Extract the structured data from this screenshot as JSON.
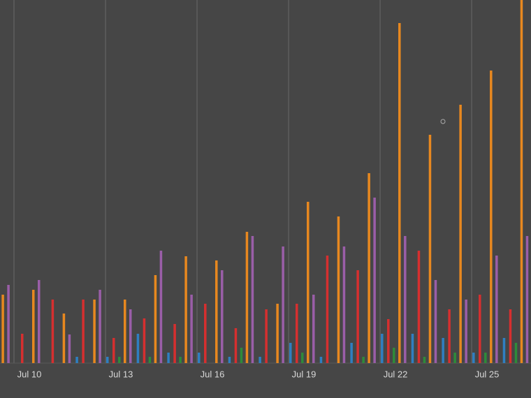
{
  "chart_data": {
    "type": "bar",
    "categories": [
      null,
      "Jul 10",
      null,
      null,
      "Jul 13",
      null,
      null,
      "Jul 16",
      null,
      null,
      "Jul 19",
      null,
      null,
      "Jul 22",
      null,
      null,
      "Jul 25",
      null
    ],
    "series": [
      {
        "color": "#2f7fc1",
        "values": [
          0,
          0,
          0,
          9,
          9,
          42,
          15,
          15,
          9,
          9,
          29,
          9,
          29,
          42,
          42,
          36,
          15,
          36
        ]
      },
      {
        "color": "#d62f2f",
        "values": [
          0,
          42,
          91,
          91,
          36,
          64,
          56,
          85,
          50,
          77,
          85,
          154,
          133,
          63,
          161,
          77,
          98,
          77
        ]
      },
      {
        "color": "#2e8b3a",
        "values": [
          0,
          0,
          0,
          0,
          9,
          9,
          9,
          0,
          22,
          0,
          15,
          0,
          9,
          22,
          9,
          15,
          15,
          29
        ]
      },
      {
        "color": "#e8881f",
        "values": [
          98,
          105,
          71,
          91,
          91,
          126,
          153,
          147,
          188,
          85,
          231,
          210,
          272,
          487,
          327,
          370,
          419,
          520
        ]
      },
      {
        "color": "#9a5ea8",
        "values": [
          112,
          119,
          41,
          105,
          77,
          161,
          98,
          133,
          182,
          167,
          98,
          167,
          237,
          182,
          119,
          91,
          154,
          182
        ]
      }
    ],
    "ylim": [
      0,
      520
    ],
    "grid": true
  }
}
